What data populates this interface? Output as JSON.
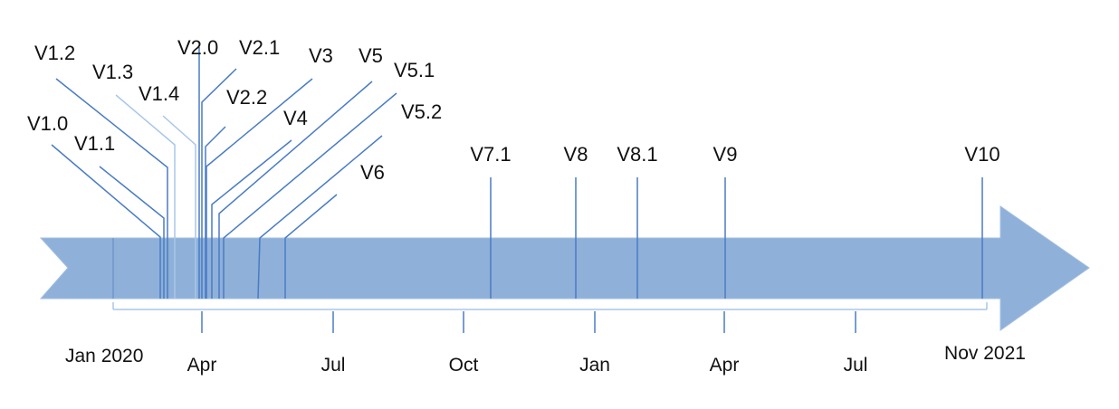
{
  "timeline": {
    "band_color": "#8eb0d9",
    "line_color": "#4a7cc4",
    "light_line_color": "#a9c7e8",
    "start_label": "Jan 2020",
    "end_label": "Nov 2021",
    "ticks": [
      "Apr",
      "Jul",
      "Oct",
      "Jan",
      "Apr",
      "Jul"
    ],
    "versions": [
      "V1.0",
      "V1.1",
      "V1.2",
      "V1.3",
      "V1.4",
      "V2.0",
      "V2.1",
      "V2.2",
      "V3",
      "V4",
      "V5",
      "V5.1",
      "V5.2",
      "V6",
      "V7.1",
      "V8",
      "V8.1",
      "V9",
      "V10"
    ]
  }
}
